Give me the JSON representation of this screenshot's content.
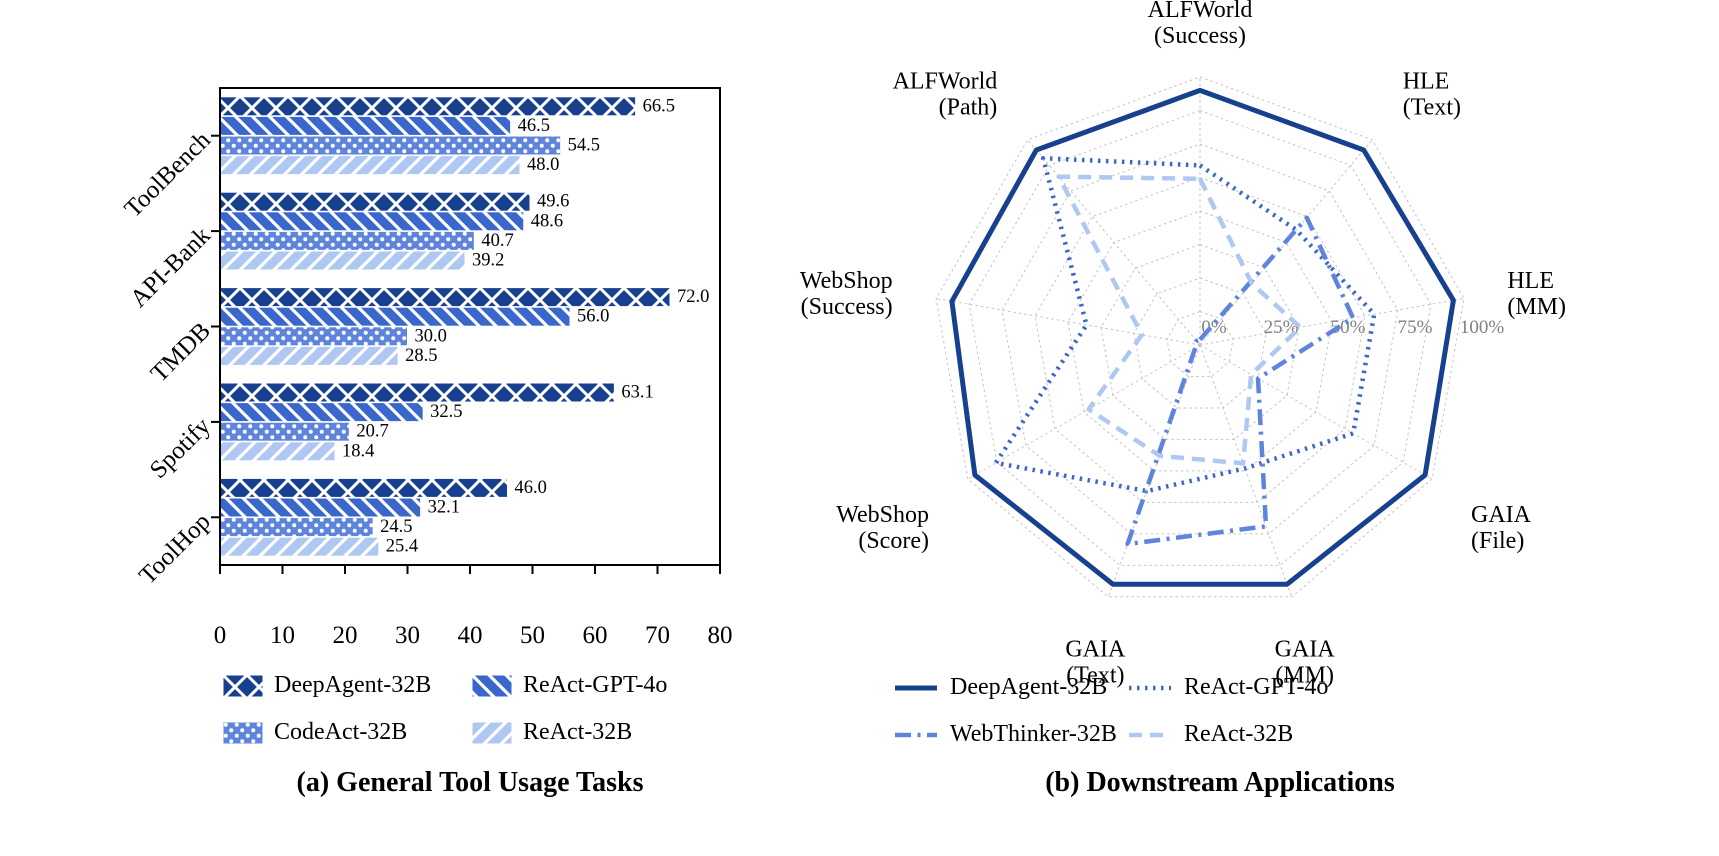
{
  "figure": {
    "background": "#ffffff",
    "panel_a": {
      "caption": "(a) General Tool Usage Tasks"
    },
    "panel_b": {
      "caption": "(b) Downstream Applications"
    }
  },
  "colors": {
    "navy": "#17418f",
    "royal": "#3a67cb",
    "cornflower": "#5e84dc",
    "pale": "#afc7f3",
    "grid_gray": "#c3c3c3",
    "tick_gray": "#808080",
    "text": "#000000"
  },
  "chart_data": [
    {
      "type": "bar",
      "panel": "a",
      "orientation": "horizontal",
      "title": "(a) General Tool Usage Tasks",
      "categories": [
        "ToolBench",
        "API-Bank",
        "TMDB",
        "Spotify",
        "ToolHop"
      ],
      "series": [
        {
          "name": "DeepAgent-32B",
          "color": "#17418f",
          "hatch": "cross",
          "values": [
            66.5,
            49.6,
            72.0,
            63.1,
            46.0
          ]
        },
        {
          "name": "ReAct-GPT-4o",
          "color": "#3a67cb",
          "hatch": "backslash",
          "values": [
            46.5,
            48.6,
            56.0,
            32.5,
            32.1
          ]
        },
        {
          "name": "CodeAct-32B",
          "color": "#5e84dc",
          "hatch": "dots",
          "values": [
            54.5,
            40.7,
            30.0,
            20.7,
            24.5
          ]
        },
        {
          "name": "ReAct-32B",
          "color": "#afc7f3",
          "hatch": "slash",
          "values": [
            48.0,
            39.2,
            28.5,
            18.4,
            25.4
          ]
        }
      ],
      "xlim": [
        0,
        80
      ],
      "xticks": [
        0,
        10,
        20,
        30,
        40,
        50,
        60,
        70,
        80
      ],
      "value_label_format": "one_decimal",
      "legend_position": "below",
      "grid": false
    },
    {
      "type": "radar",
      "panel": "b",
      "title": "(b) Downstream Applications",
      "axes": [
        [
          "ALFWorld",
          "(Success)"
        ],
        [
          "HLE",
          "(Text)"
        ],
        [
          "HLE",
          "(MM)"
        ],
        [
          "GAIA",
          "(File)"
        ],
        [
          "GAIA",
          "(MM)"
        ],
        [
          "GAIA",
          "(Text)"
        ],
        [
          "WebShop",
          "(Score)"
        ],
        [
          "WebShop",
          "(Success)"
        ],
        [
          "ALFWorld",
          "(Path)"
        ]
      ],
      "rlim": [
        0,
        100
      ],
      "rtick_labels": [
        "0%",
        "25%",
        "50%",
        "75%",
        "100%"
      ],
      "rtick_values": [
        0,
        25,
        50,
        75,
        100
      ],
      "grid": true,
      "grid_rings_every_pct": 12.5,
      "legend_position": "below",
      "series": [
        {
          "name": "DeepAgent-32B",
          "color": "#17418f",
          "style": "solid",
          "values": [
            95,
            95,
            96,
            97,
            95,
            95,
            97,
            94,
            95
          ]
        },
        {
          "name": "ReAct-GPT-4o",
          "color": "#3a67cb",
          "style": "dotted",
          "values": [
            67,
            56,
            66,
            66,
            49,
            58,
            88,
            43,
            91
          ]
        },
        {
          "name": "WebThinker-32B",
          "color": "#5e84dc",
          "style": "dashdot",
          "values": [
            2,
            62,
            58,
            25,
            72,
            79,
            2,
            2,
            2
          ]
        },
        {
          "name": "ReAct-32B",
          "color": "#afc7f3",
          "style": "dashed",
          "values": [
            62,
            30,
            38,
            22,
            47,
            44,
            48,
            22,
            82
          ]
        }
      ]
    }
  ]
}
